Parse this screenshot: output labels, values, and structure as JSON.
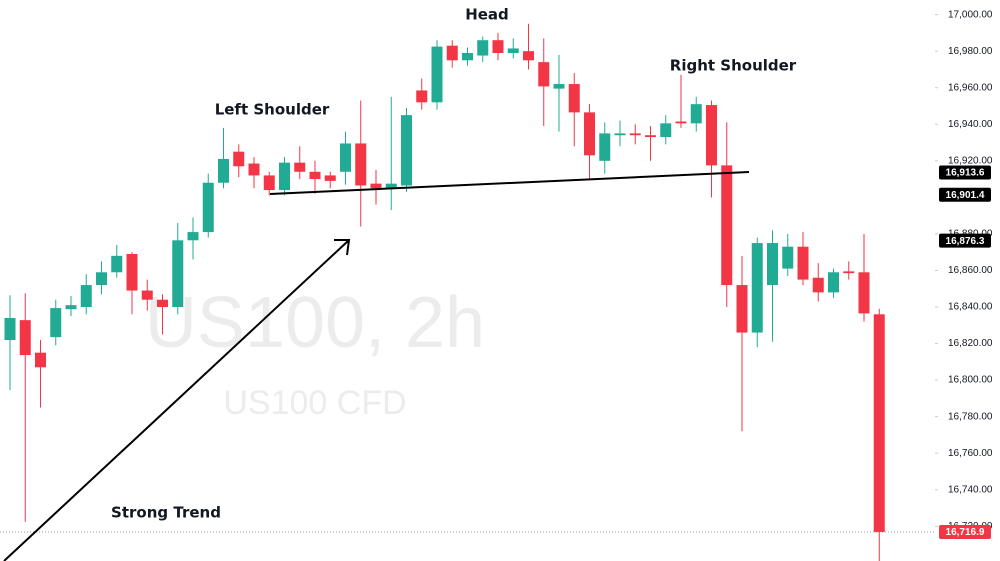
{
  "chart_data": {
    "type": "candlestick",
    "open": [
      16821.9,
      16832.8,
      16815,
      16823.5,
      16838.8,
      16840,
      16852,
      16859,
      16869,
      16849,
      16844,
      16840,
      16876.5,
      16881,
      16908,
      16925,
      16918.5,
      16912,
      16904,
      16919,
      16914,
      16912,
      16914,
      16929.5,
      16907.5,
      16905,
      16906.5,
      16958.5,
      16952,
      16983,
      16975,
      16977.6,
      16986,
      16979,
      16980,
      16974,
      16959.5,
      16962,
      16946.5,
      16920,
      16934,
      16935,
      16934,
      16933,
      16941.5,
      16940.5,
      16950.5,
      16917.5,
      16852,
      16826,
      16852,
      16861,
      16873,
      16856,
      16848,
      16859.5,
      16859,
      16836
    ],
    "high": [
      16846.4,
      16847.5,
      16822,
      16844,
      16846,
      16858,
      16865,
      16874,
      16870,
      16855,
      16847,
      16886,
      16889,
      16913,
      16938,
      16929,
      16922,
      16914,
      16922,
      16928,
      16920,
      16914,
      16936,
      16953,
      16915,
      16955,
      16949,
      16965,
      16986,
      16986,
      16982,
      16988,
      16990,
      16987,
      16995,
      16987,
      16978,
      16968,
      16951,
      16941,
      16942,
      16940,
      16939,
      16945,
      16967,
      16955,
      16953,
      16941,
      16868,
      16878,
      16882,
      16880,
      16881,
      16864,
      16861,
      16865,
      16880,
      16839
    ],
    "low": [
      16794.5,
      16722.4,
      16785,
      16819,
      16835,
      16836,
      16847,
      16856,
      16836,
      16838,
      16825,
      16836,
      16866,
      16878,
      16905,
      16911,
      16905,
      16901,
      16901,
      16910,
      16902,
      16905,
      16907,
      16884,
      16896,
      16893,
      16903,
      16948,
      16948,
      16971,
      16972,
      16974,
      16975,
      16976,
      16970,
      16939,
      16936,
      16928,
      16910,
      16913,
      16928,
      16929,
      16920,
      16929,
      16938,
      16936,
      16900,
      16840,
      16772,
      16818,
      16821,
      16857,
      16852,
      16843,
      16845,
      16855,
      16832,
      16701
    ],
    "close": [
      16834,
      16813.7,
      16807,
      16839.4,
      16841,
      16852,
      16859,
      16868,
      16849,
      16844,
      16840,
      16876.5,
      16881,
      16908,
      16921,
      16917,
      16912,
      16904,
      16919,
      16914,
      16910,
      16909,
      16929.5,
      16906.5,
      16905,
      16907.5,
      16945,
      16952,
      16982.5,
      16975,
      16979,
      16986,
      16979,
      16981.5,
      16975,
      16960.7,
      16962,
      16946.5,
      16923,
      16935,
      16935,
      16934,
      16933,
      16940.5,
      16940.5,
      16951,
      16917.5,
      16852,
      16826,
      16875,
      16875,
      16873,
      16855,
      16848,
      16859,
      16858.5,
      16836.5,
      16716.9
    ],
    "up_color": "#22ab94",
    "down_color": "#f23645",
    "ylim": [
      16701,
      17008
    ],
    "yticks": [
      {
        "value": 16720,
        "label": "16,720.00"
      },
      {
        "value": 16740,
        "label": "16,740.00"
      },
      {
        "value": 16760,
        "label": "16,760.00"
      },
      {
        "value": 16780,
        "label": "16,780.00"
      },
      {
        "value": 16800,
        "label": "16,800.00"
      },
      {
        "value": 16820,
        "label": "16,820.00"
      },
      {
        "value": 16840,
        "label": "16,840.00"
      },
      {
        "value": 16860,
        "label": "16,860.00"
      },
      {
        "value": 16880,
        "label": "16,880.00"
      },
      {
        "value": 16920,
        "label": "16,920.00"
      },
      {
        "value": 16940,
        "label": "16,940.00"
      },
      {
        "value": 16960,
        "label": "16,960.00"
      },
      {
        "value": 16980,
        "label": "16,980.00"
      },
      {
        "value": 17000,
        "label": "17,000.00"
      }
    ],
    "price_labels": [
      {
        "value": 16913.6,
        "label": "16,913.6"
      },
      {
        "value": 16901.4,
        "label": "16,901.4"
      },
      {
        "value": 16876.3,
        "label": "16,876.3"
      }
    ],
    "last_price": {
      "value": 16716.9,
      "label": "16,716.9"
    },
    "annotations": [
      "Head",
      "Left Shoulder",
      "Right Shoulder",
      "Strong Trend"
    ],
    "watermark": [
      "US100, 2h",
      "US100 CFD"
    ]
  }
}
